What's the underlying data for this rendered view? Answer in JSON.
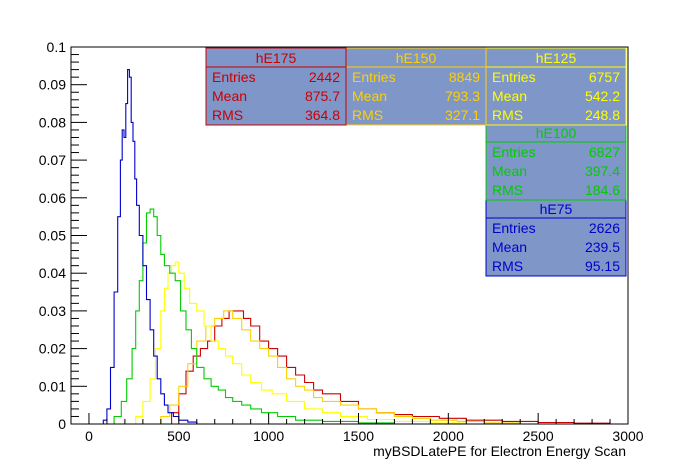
{
  "chart_data": {
    "type": "line",
    "style": "step-histogram",
    "title": "",
    "xlabel": "myBSDLatePE for Electron Energy Scan",
    "ylabel": "",
    "xlim": [
      -100,
      3000
    ],
    "ylim": [
      0,
      0.1
    ],
    "x_ticks": [
      "0",
      "500",
      "1000",
      "1500",
      "2000",
      "2500",
      "3000"
    ],
    "y_ticks": [
      "0",
      "0.01",
      "0.02",
      "0.03",
      "0.04",
      "0.05",
      "0.06",
      "0.07",
      "0.08",
      "0.09",
      "0.1"
    ],
    "grid": false,
    "stat_box_fill": "#7f96c8",
    "stats_labels": [
      "Entries",
      "Mean",
      "RMS"
    ],
    "series": [
      {
        "name": "hE75",
        "color": "#0000cc",
        "stats": {
          "entries": "2626",
          "mean": "239.5",
          "rms": "95.15"
        },
        "points": [
          [
            0,
            0
          ],
          [
            50,
            0
          ],
          [
            80,
            0.001
          ],
          [
            100,
            0.004
          ],
          [
            120,
            0.015
          ],
          [
            140,
            0.035
          ],
          [
            160,
            0.055
          ],
          [
            175,
            0.07
          ],
          [
            185,
            0.078
          ],
          [
            195,
            0.076
          ],
          [
            205,
            0.085
          ],
          [
            215,
            0.094
          ],
          [
            225,
            0.092
          ],
          [
            235,
            0.08
          ],
          [
            245,
            0.075
          ],
          [
            255,
            0.065
          ],
          [
            265,
            0.058
          ],
          [
            280,
            0.05
          ],
          [
            300,
            0.042
          ],
          [
            320,
            0.033
          ],
          [
            340,
            0.025
          ],
          [
            360,
            0.018
          ],
          [
            380,
            0.012
          ],
          [
            400,
            0.008
          ],
          [
            420,
            0.005
          ],
          [
            440,
            0.003
          ],
          [
            470,
            0.002
          ],
          [
            500,
            0.001
          ],
          [
            550,
            0.0005
          ],
          [
            600,
            0
          ],
          [
            3000,
            0
          ]
        ]
      },
      {
        "name": "hE100",
        "color": "#00cc00",
        "stats": {
          "entries": "6827",
          "mean": "397.4",
          "rms": "184.6"
        },
        "points": [
          [
            0,
            0
          ],
          [
            100,
            0
          ],
          [
            140,
            0.002
          ],
          [
            180,
            0.006
          ],
          [
            210,
            0.012
          ],
          [
            240,
            0.02
          ],
          [
            260,
            0.03
          ],
          [
            280,
            0.038
          ],
          [
            300,
            0.048
          ],
          [
            320,
            0.056
          ],
          [
            340,
            0.057
          ],
          [
            360,
            0.055
          ],
          [
            380,
            0.05
          ],
          [
            400,
            0.045
          ],
          [
            420,
            0.042
          ],
          [
            450,
            0.04
          ],
          [
            480,
            0.038
          ],
          [
            510,
            0.03
          ],
          [
            540,
            0.025
          ],
          [
            570,
            0.02
          ],
          [
            600,
            0.015
          ],
          [
            640,
            0.012
          ],
          [
            680,
            0.01
          ],
          [
            720,
            0.009
          ],
          [
            760,
            0.007
          ],
          [
            800,
            0.006
          ],
          [
            850,
            0.005
          ],
          [
            900,
            0.004
          ],
          [
            960,
            0.003
          ],
          [
            1050,
            0.002
          ],
          [
            1150,
            0.001
          ],
          [
            1300,
            0.0007
          ],
          [
            1500,
            0.0003
          ],
          [
            1700,
            0
          ],
          [
            3000,
            0
          ]
        ]
      },
      {
        "name": "hE125",
        "color": "#ffff00",
        "stats": {
          "entries": "6757",
          "mean": "542.2",
          "rms": "248.8"
        },
        "points": [
          [
            0,
            0
          ],
          [
            200,
            0
          ],
          [
            260,
            0.002
          ],
          [
            300,
            0.006
          ],
          [
            340,
            0.012
          ],
          [
            370,
            0.02
          ],
          [
            400,
            0.03
          ],
          [
            420,
            0.036
          ],
          [
            440,
            0.04
          ],
          [
            460,
            0.042
          ],
          [
            480,
            0.043
          ],
          [
            500,
            0.04
          ],
          [
            530,
            0.036
          ],
          [
            560,
            0.032
          ],
          [
            600,
            0.03
          ],
          [
            640,
            0.026
          ],
          [
            680,
            0.022
          ],
          [
            720,
            0.02
          ],
          [
            760,
            0.018
          ],
          [
            800,
            0.016
          ],
          [
            850,
            0.013
          ],
          [
            900,
            0.011
          ],
          [
            960,
            0.009
          ],
          [
            1020,
            0.008
          ],
          [
            1100,
            0.006
          ],
          [
            1200,
            0.004
          ],
          [
            1300,
            0.003
          ],
          [
            1400,
            0.002
          ],
          [
            1550,
            0.0012
          ],
          [
            1700,
            0.0007
          ],
          [
            1900,
            0.0003
          ],
          [
            2100,
            0
          ],
          [
            3000,
            0
          ]
        ]
      },
      {
        "name": "hE150",
        "color": "#ffd000",
        "stats": {
          "entries": "8849",
          "mean": "793.3",
          "rms": "327.1"
        },
        "points": [
          [
            0,
            0
          ],
          [
            300,
            0
          ],
          [
            400,
            0.002
          ],
          [
            450,
            0.005
          ],
          [
            500,
            0.01
          ],
          [
            550,
            0.016
          ],
          [
            600,
            0.022
          ],
          [
            650,
            0.026
          ],
          [
            700,
            0.028
          ],
          [
            750,
            0.03
          ],
          [
            800,
            0.028
          ],
          [
            850,
            0.025
          ],
          [
            900,
            0.022
          ],
          [
            950,
            0.02
          ],
          [
            1000,
            0.018
          ],
          [
            1050,
            0.015
          ],
          [
            1100,
            0.012
          ],
          [
            1150,
            0.01
          ],
          [
            1200,
            0.009
          ],
          [
            1250,
            0.007
          ],
          [
            1300,
            0.006
          ],
          [
            1400,
            0.005
          ],
          [
            1500,
            0.004
          ],
          [
            1600,
            0.003
          ],
          [
            1700,
            0.002
          ],
          [
            1800,
            0.0015
          ],
          [
            1900,
            0.001
          ],
          [
            2050,
            0.0007
          ],
          [
            2200,
            0.0003
          ],
          [
            2400,
            0
          ],
          [
            3000,
            0
          ]
        ]
      },
      {
        "name": "hE175",
        "color": "#cc0000",
        "stats": {
          "entries": "2442",
          "mean": "875.7",
          "rms": "364.8"
        },
        "points": [
          [
            0,
            0
          ],
          [
            400,
            0
          ],
          [
            460,
            0.003
          ],
          [
            500,
            0.008
          ],
          [
            540,
            0.014
          ],
          [
            580,
            0.018
          ],
          [
            620,
            0.02
          ],
          [
            660,
            0.022
          ],
          [
            700,
            0.026
          ],
          [
            740,
            0.028
          ],
          [
            780,
            0.03
          ],
          [
            820,
            0.03
          ],
          [
            860,
            0.028
          ],
          [
            900,
            0.026
          ],
          [
            950,
            0.022
          ],
          [
            1000,
            0.02
          ],
          [
            1050,
            0.018
          ],
          [
            1100,
            0.015
          ],
          [
            1150,
            0.013
          ],
          [
            1200,
            0.011
          ],
          [
            1250,
            0.009
          ],
          [
            1300,
            0.008
          ],
          [
            1400,
            0.006
          ],
          [
            1500,
            0.004
          ],
          [
            1600,
            0.003
          ],
          [
            1700,
            0.0025
          ],
          [
            1800,
            0.002
          ],
          [
            1950,
            0.0015
          ],
          [
            2100,
            0.001
          ],
          [
            2300,
            0.0007
          ],
          [
            2500,
            0.0004
          ],
          [
            2700,
            0.0002
          ],
          [
            2900,
            0
          ],
          [
            3000,
            0
          ]
        ]
      }
    ]
  }
}
